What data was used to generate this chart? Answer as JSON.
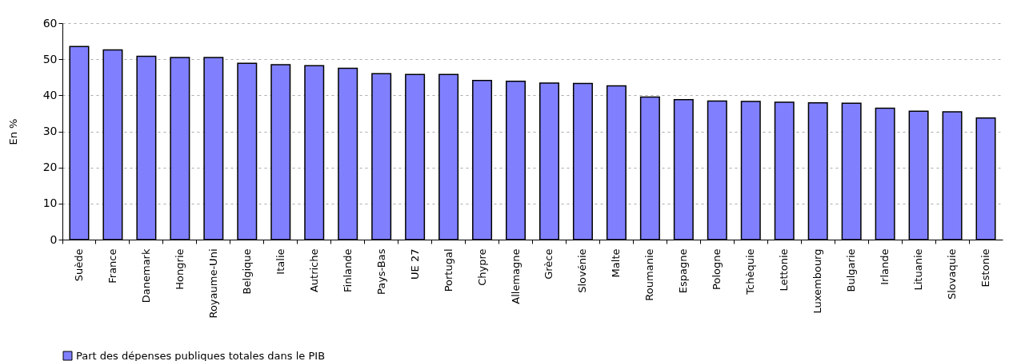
{
  "chart_data": {
    "type": "bar",
    "ylabel": "En %",
    "categories": [
      "Suède",
      "France",
      "Danemark",
      "Hongrie",
      "Royaume-Uni",
      "Belgique",
      "Italie",
      "Autriche",
      "Finlande",
      "Pays-Bas",
      "UE 27",
      "Portugal",
      "Chypre",
      "Allemagne",
      "Grèce",
      "Slovénie",
      "Malte",
      "Roumanie",
      "Espagne",
      "Pologne",
      "Tchèquie",
      "Lettonie",
      "Luxembourg",
      "Bulgarie",
      "Irlande",
      "Lituanie",
      "Slovaquie",
      "Estonie"
    ],
    "series": [
      {
        "name": "Part des dépenses publiques totales dans le PIB",
        "color": "#8080ff",
        "values": [
          53.5,
          52.6,
          50.8,
          50.5,
          50.5,
          48.9,
          48.5,
          48.2,
          47.5,
          46.0,
          45.8,
          45.8,
          44.1,
          43.9,
          43.4,
          43.3,
          42.6,
          39.5,
          38.8,
          38.4,
          38.3,
          38.1,
          37.9,
          37.8,
          36.4,
          35.6,
          35.4,
          33.7
        ]
      }
    ],
    "ylim": [
      0,
      60
    ],
    "yticks": [
      0,
      10,
      20,
      30,
      40,
      50,
      60
    ],
    "grid": "y",
    "legend": "bottom"
  }
}
